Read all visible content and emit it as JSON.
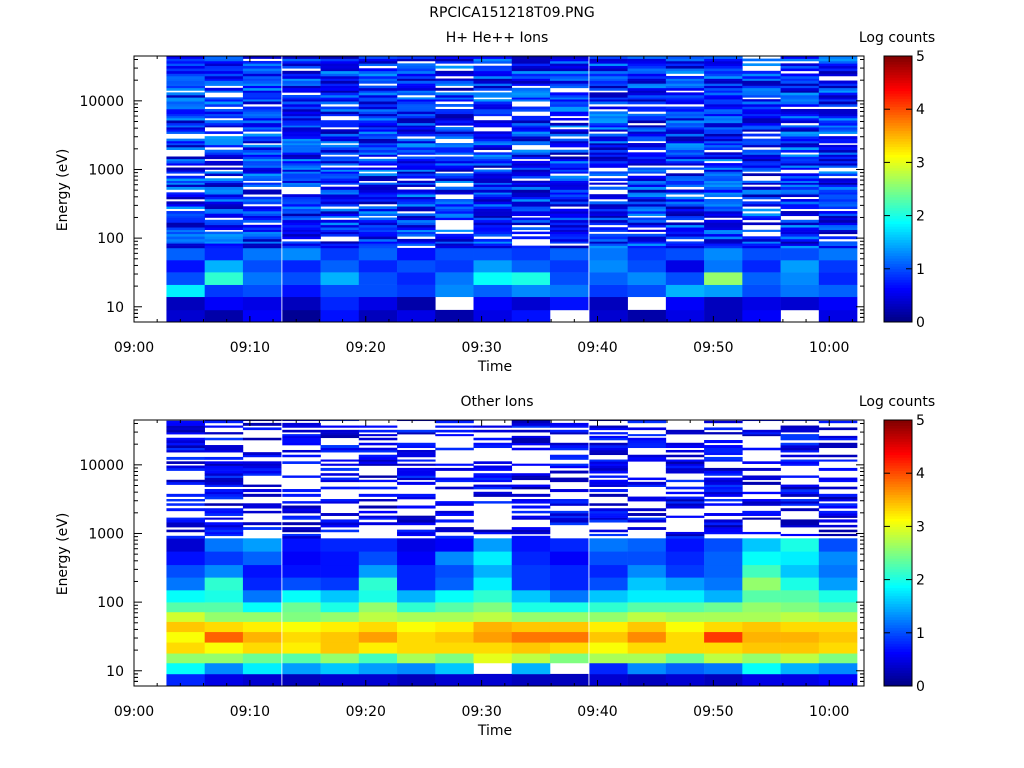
{
  "page": {
    "title": "RPCICA151218T09.PNG"
  },
  "palette": [
    "#000080",
    "#0000ff",
    "#0080ff",
    "#00ffff",
    "#80ff80",
    "#ffff00",
    "#ff8000",
    "#ff0000",
    "#800000"
  ],
  "chart_data": [
    {
      "type": "heatmap",
      "title": "H+ He++ Ions",
      "xlabel": "Time",
      "ylabel": "Energy (eV)",
      "x_ticks": [
        "09:00",
        "09:10",
        "09:20",
        "09:30",
        "09:40",
        "09:50",
        "10:00"
      ],
      "x_range_minutes": [
        0,
        63
      ],
      "y_scale": "log",
      "y_range": [
        6,
        45000
      ],
      "y_ticks": [
        10,
        100,
        1000,
        10000
      ],
      "colorbar": {
        "label": "Log counts",
        "range": [
          0,
          5
        ],
        "ticks": [
          "0",
          "1",
          "2",
          "3",
          "4",
          "5"
        ]
      },
      "column_start_minutes": [
        2.8,
        6.1,
        9.4,
        12.8,
        16.1,
        19.4,
        22.7,
        26.0,
        29.3,
        32.6,
        35.9,
        39.3,
        42.6,
        45.9,
        49.2,
        52.5,
        55.8,
        59.1
      ],
      "column_width_minutes": 3.3,
      "bands": [
        {
          "e_from": 6,
          "e_to": 9,
          "values": [
            0.4,
            0.2,
            0.6,
            0.1,
            0.7,
            0.3,
            0.5,
            0.2,
            0.5,
            0.7,
            null,
            0.4,
            0.2,
            0.5,
            0.3,
            0.6,
            null,
            0.5
          ]
        },
        {
          "e_from": 9,
          "e_to": 14,
          "values": [
            0.3,
            0.6,
            0.5,
            0.3,
            0.8,
            0.5,
            0.2,
            null,
            0.6,
            0.4,
            0.7,
            0.3,
            null,
            0.6,
            0.3,
            0.5,
            0.4,
            0.6
          ]
        },
        {
          "e_from": 14,
          "e_to": 21,
          "values": [
            1.8,
            0.9,
            1.0,
            0.7,
            1.0,
            1.0,
            0.9,
            1.3,
            1.1,
            1.3,
            1.2,
            0.9,
            1.0,
            1.5,
            1.4,
            1.0,
            1.2,
            1.1
          ]
        },
        {
          "e_from": 21,
          "e_to": 32,
          "values": [
            1.0,
            2.1,
            1.2,
            1.0,
            1.5,
            1.0,
            0.8,
            1.2,
            1.9,
            2.0,
            1.0,
            1.1,
            1.3,
            1.0,
            2.6,
            1.1,
            1.3,
            0.8
          ]
        },
        {
          "e_from": 32,
          "e_to": 48,
          "values": [
            0.7,
            1.5,
            1.0,
            0.8,
            1.1,
            0.8,
            1.0,
            0.9,
            1.4,
            1.1,
            0.9,
            1.3,
            1.0,
            0.5,
            1.2,
            0.8,
            1.4,
            0.9
          ]
        },
        {
          "e_from": 48,
          "e_to": 72,
          "values": [
            1.1,
            0.8,
            1.2,
            1.3,
            0.9,
            1.1,
            0.7,
            1.0,
            1.0,
            0.9,
            1.1,
            1.2,
            0.9,
            1.0,
            1.3,
            1.0,
            1.0,
            1.2
          ]
        }
      ],
      "upper_noise": {
        "from_energy": 72,
        "to_energy": 45000,
        "min": 0.2,
        "max": 1.4,
        "gap_probability": 0.12,
        "seed": 7
      }
    },
    {
      "type": "heatmap",
      "title": "Other Ions",
      "xlabel": "Time",
      "ylabel": "Energy (eV)",
      "x_ticks": [
        "09:00",
        "09:10",
        "09:20",
        "09:30",
        "09:40",
        "09:50",
        "10:00"
      ],
      "x_range_minutes": [
        0,
        63
      ],
      "y_scale": "log",
      "y_range": [
        6,
        45000
      ],
      "y_ticks": [
        10,
        100,
        1000,
        10000
      ],
      "colorbar": {
        "label": "Log counts",
        "range": [
          0,
          5
        ],
        "ticks": [
          "0",
          "1",
          "2",
          "3",
          "4",
          "5"
        ]
      },
      "column_start_minutes": [
        2.8,
        6.1,
        9.4,
        12.8,
        16.1,
        19.4,
        22.7,
        26.0,
        29.3,
        32.6,
        35.9,
        39.3,
        42.6,
        45.9,
        49.2,
        52.5,
        55.8,
        59.1
      ],
      "column_width_minutes": 3.3,
      "bands": [
        {
          "e_from": 6,
          "e_to": 9,
          "values": [
            0.8,
            0.5,
            0.4,
            0.3,
            0.4,
            0.4,
            0.3,
            0.4,
            0.4,
            0.3,
            0.3,
            0.4,
            0.3,
            0.4,
            0.3,
            0.5,
            0.5,
            0.6
          ]
        },
        {
          "e_from": 9,
          "e_to": 13,
          "values": [
            1.9,
            1.3,
            1.8,
            1.4,
            1.6,
            1.4,
            1.3,
            1.6,
            null,
            1.5,
            null,
            0.8,
            1.3,
            1.1,
            1.2,
            1.9,
            1.5,
            1.3
          ]
        },
        {
          "e_from": 13,
          "e_to": 18,
          "values": [
            2.6,
            2.6,
            2.4,
            2.3,
            2.6,
            2.2,
            2.7,
            2.5,
            3.0,
            2.8,
            2.5,
            2.7,
            2.7,
            2.4,
            2.8,
            2.6,
            2.8,
            2.5
          ]
        },
        {
          "e_from": 18,
          "e_to": 26,
          "values": [
            3.3,
            3.1,
            3.3,
            3.2,
            3.4,
            3.2,
            3.3,
            3.3,
            3.3,
            3.4,
            3.3,
            3.1,
            3.3,
            3.3,
            3.3,
            3.4,
            3.4,
            3.3
          ]
        },
        {
          "e_from": 26,
          "e_to": 37,
          "values": [
            3.1,
            3.9,
            3.5,
            3.3,
            3.4,
            3.6,
            3.3,
            3.4,
            3.6,
            3.8,
            3.8,
            3.4,
            3.7,
            3.3,
            4.1,
            3.5,
            3.5,
            3.4
          ]
        },
        {
          "e_from": 37,
          "e_to": 52,
          "values": [
            3.4,
            3.3,
            3.2,
            3.1,
            3.2,
            3.3,
            3.1,
            3.2,
            3.5,
            3.4,
            3.4,
            3.2,
            3.4,
            3.1,
            3.3,
            3.4,
            3.3,
            3.3
          ]
        },
        {
          "e_from": 52,
          "e_to": 72,
          "values": [
            2.9,
            2.6,
            2.6,
            2.5,
            2.6,
            2.8,
            2.7,
            2.7,
            2.8,
            2.6,
            2.6,
            2.6,
            2.8,
            2.7,
            2.7,
            2.7,
            2.8,
            2.7
          ]
        },
        {
          "e_from": 72,
          "e_to": 100,
          "values": [
            2.3,
            2.3,
            1.9,
            2.4,
            2.0,
            2.6,
            2.1,
            2.3,
            2.5,
            2.0,
            2.0,
            2.1,
            2.3,
            2.3,
            2.4,
            2.6,
            2.5,
            2.3
          ]
        },
        {
          "e_from": 100,
          "e_to": 150,
          "values": [
            1.9,
            2.0,
            1.2,
            1.9,
            1.6,
            2.0,
            1.5,
            1.9,
            2.1,
            1.6,
            1.2,
            1.6,
            1.8,
            1.8,
            1.5,
            2.3,
            2.3,
            2.0
          ]
        },
        {
          "e_from": 150,
          "e_to": 230,
          "values": [
            1.2,
            2.1,
            0.8,
            1.0,
            0.9,
            2.1,
            0.8,
            1.1,
            1.8,
            0.9,
            0.8,
            1.0,
            1.6,
            1.4,
            1.2,
            2.6,
            2.0,
            1.4
          ]
        },
        {
          "e_from": 230,
          "e_to": 350,
          "values": [
            1.0,
            1.3,
            0.7,
            0.7,
            0.7,
            1.4,
            0.8,
            1.0,
            1.5,
            0.9,
            0.8,
            0.8,
            1.3,
            0.9,
            1.1,
            2.2,
            1.6,
            1.2
          ]
        },
        {
          "e_from": 350,
          "e_to": 550,
          "values": [
            0.7,
            0.9,
            1.1,
            0.6,
            0.7,
            1.0,
            0.6,
            1.3,
            1.8,
            0.8,
            0.6,
            1.0,
            1.0,
            0.8,
            1.1,
            1.9,
            1.8,
            1.3
          ]
        },
        {
          "e_from": 550,
          "e_to": 850,
          "values": [
            0.4,
            1.2,
            1.4,
            0.7,
            0.8,
            0.8,
            0.5,
            0.6,
            1.4,
            0.7,
            0.8,
            1.2,
            1.1,
            0.7,
            1.0,
            1.6,
            2.0,
            1.0
          ]
        }
      ],
      "upper_noise": {
        "from_energy": 850,
        "to_energy": 45000,
        "min": 0.2,
        "max": 0.9,
        "gap_probability": 0.55,
        "seed": 13
      }
    }
  ]
}
